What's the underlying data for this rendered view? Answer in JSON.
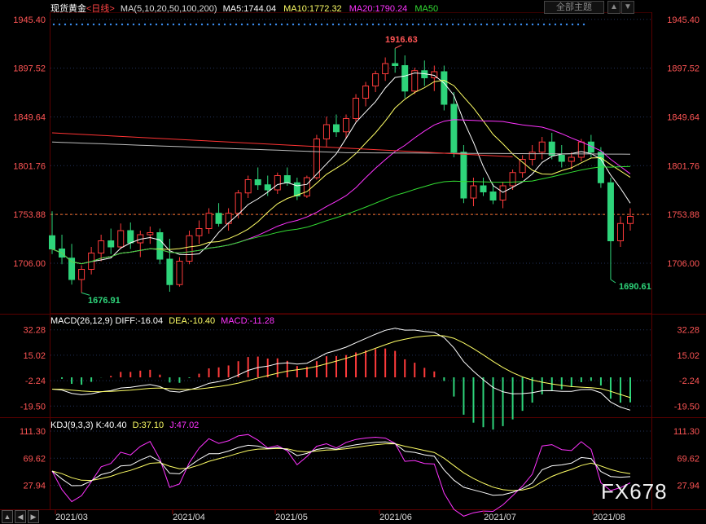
{
  "header": {
    "instrument": "现货黄金",
    "period": "<日线>",
    "ma_label": "MA(5,10,20,50,100,200)",
    "ma5": "MA5:1744.04",
    "ma10": "MA10:1772.32",
    "ma20": "MA20:1790.24",
    "ma50": "MA50",
    "theme_button": "全部主题",
    "scroll_up": "▲",
    "scroll_down": "▼"
  },
  "macd_header": {
    "label": "MACD(26,12,9)",
    "diff": "DIFF:-16.04",
    "dea": "DEA:-10.40",
    "macd": "MACD:-11.28"
  },
  "kdj_header": {
    "label": "KDJ(9,3,3)",
    "k": "K:40.40",
    "d": "D:37.10",
    "j": "J:47.02"
  },
  "annotations": {
    "high": "1916.63",
    "low1": "1676.91",
    "low2": "1690.61",
    "watermark": "FX678"
  },
  "tabs": [
    "▲",
    "◀",
    "▶"
  ],
  "colors": {
    "up": "#ff3b3b",
    "down": "#2ed47a",
    "ma5": "#ffffff",
    "ma10": "#ffff66",
    "ma20": "#ff33ff",
    "ma50": "#33dd33",
    "ma100": "#bbbbbb",
    "ma200": "#ff3333",
    "axis_red": "#ff5555",
    "grid": "#22325a"
  },
  "chart_data": {
    "type": "candlestick",
    "price_axis": {
      "ticks": [
        "1945.40",
        "1897.52",
        "1849.64",
        "1801.76",
        "1753.88",
        "1706.00"
      ],
      "range": [
        1658,
        1950
      ],
      "dashed_line": 1753.88
    },
    "x_ticks": [
      "2021/03",
      "2021/04",
      "2021/05",
      "2021/06",
      "2021/07",
      "2021/08"
    ],
    "ohlc_approx": [
      [
        1733,
        1757,
        1715,
        1720
      ],
      [
        1720,
        1734,
        1705,
        1712
      ],
      [
        1711,
        1725,
        1685,
        1690
      ],
      [
        1690,
        1704,
        1677,
        1700
      ],
      [
        1700,
        1722,
        1695,
        1716
      ],
      [
        1716,
        1734,
        1708,
        1728
      ],
      [
        1728,
        1740,
        1715,
        1722
      ],
      [
        1722,
        1745,
        1720,
        1738
      ],
      [
        1738,
        1746,
        1720,
        1726
      ],
      [
        1726,
        1738,
        1712,
        1734
      ],
      [
        1734,
        1742,
        1725,
        1736
      ],
      [
        1736,
        1740,
        1705,
        1710
      ],
      [
        1710,
        1730,
        1678,
        1685
      ],
      [
        1685,
        1712,
        1683,
        1708
      ],
      [
        1708,
        1738,
        1705,
        1733
      ],
      [
        1733,
        1748,
        1725,
        1740
      ],
      [
        1740,
        1760,
        1735,
        1755
      ],
      [
        1755,
        1765,
        1742,
        1745
      ],
      [
        1745,
        1760,
        1738,
        1755
      ],
      [
        1755,
        1778,
        1750,
        1775
      ],
      [
        1775,
        1792,
        1770,
        1788
      ],
      [
        1788,
        1800,
        1778,
        1783
      ],
      [
        1783,
        1792,
        1772,
        1778
      ],
      [
        1778,
        1795,
        1774,
        1792
      ],
      [
        1792,
        1800,
        1782,
        1785
      ],
      [
        1785,
        1790,
        1768,
        1772
      ],
      [
        1772,
        1792,
        1770,
        1790
      ],
      [
        1790,
        1832,
        1788,
        1828
      ],
      [
        1828,
        1850,
        1820,
        1842
      ],
      [
        1842,
        1852,
        1830,
        1835
      ],
      [
        1835,
        1852,
        1828,
        1848
      ],
      [
        1848,
        1872,
        1845,
        1868
      ],
      [
        1868,
        1884,
        1860,
        1880
      ],
      [
        1880,
        1895,
        1874,
        1892
      ],
      [
        1892,
        1908,
        1885,
        1902
      ],
      [
        1902,
        1917,
        1893,
        1900
      ],
      [
        1900,
        1910,
        1868,
        1875
      ],
      [
        1875,
        1898,
        1872,
        1895
      ],
      [
        1895,
        1905,
        1880,
        1888
      ],
      [
        1888,
        1900,
        1875,
        1894
      ],
      [
        1894,
        1900,
        1856,
        1862
      ],
      [
        1862,
        1874,
        1810,
        1815
      ],
      [
        1815,
        1822,
        1765,
        1770
      ],
      [
        1770,
        1790,
        1762,
        1782
      ],
      [
        1782,
        1790,
        1772,
        1776
      ],
      [
        1776,
        1784,
        1764,
        1768
      ],
      [
        1768,
        1786,
        1760,
        1782
      ],
      [
        1782,
        1798,
        1778,
        1795
      ],
      [
        1795,
        1812,
        1790,
        1808
      ],
      [
        1808,
        1822,
        1802,
        1815
      ],
      [
        1815,
        1830,
        1808,
        1825
      ],
      [
        1825,
        1834,
        1808,
        1812
      ],
      [
        1812,
        1822,
        1800,
        1806
      ],
      [
        1806,
        1815,
        1798,
        1810
      ],
      [
        1810,
        1828,
        1806,
        1825
      ],
      [
        1825,
        1832,
        1810,
        1815
      ],
      [
        1815,
        1820,
        1780,
        1785
      ],
      [
        1785,
        1790,
        1690,
        1728
      ],
      [
        1728,
        1752,
        1722,
        1745
      ],
      [
        1745,
        1760,
        1738,
        1752
      ]
    ]
  }
}
